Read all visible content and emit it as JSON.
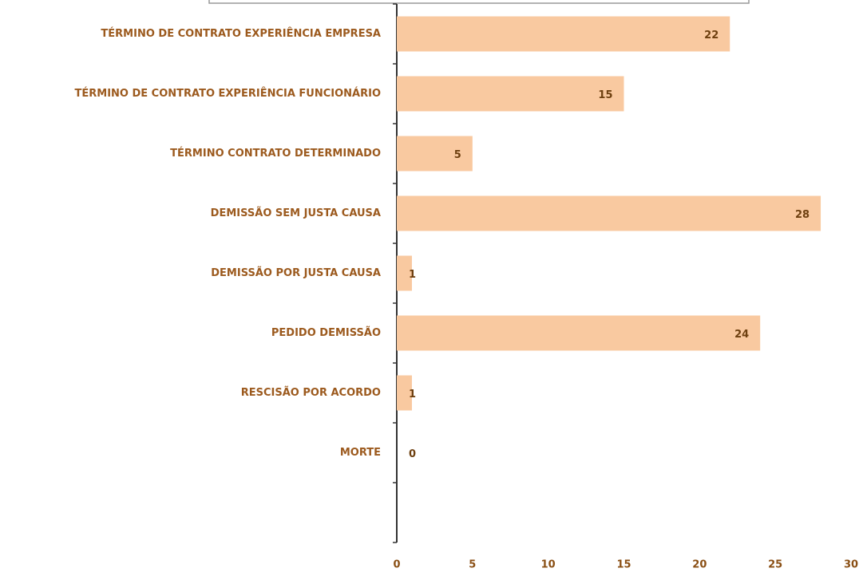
{
  "chart_data": {
    "type": "barh",
    "categories": [
      "TÉRMINO DE CONTRATO EXPERIÊNCIA EMPRESA",
      "TÉRMINO DE CONTRATO EXPERIÊNCIA FUNCIONÁRIO",
      "TÉRMINO CONTRATO DETERMINADO",
      "DEMISSÃO SEM JUSTA CAUSA",
      "DEMISSÃO POR JUSTA CAUSA",
      "PEDIDO DEMISSÃO",
      "RESCISÃO POR ACORDO",
      "MORTE",
      null
    ],
    "values": [
      22,
      15,
      5,
      28,
      1,
      24,
      1,
      0,
      null
    ],
    "color": "#f9c9a0",
    "xlim": [
      0,
      30
    ],
    "xticks": [
      0,
      5,
      10,
      15,
      20,
      25,
      30
    ],
    "grid": false
  }
}
